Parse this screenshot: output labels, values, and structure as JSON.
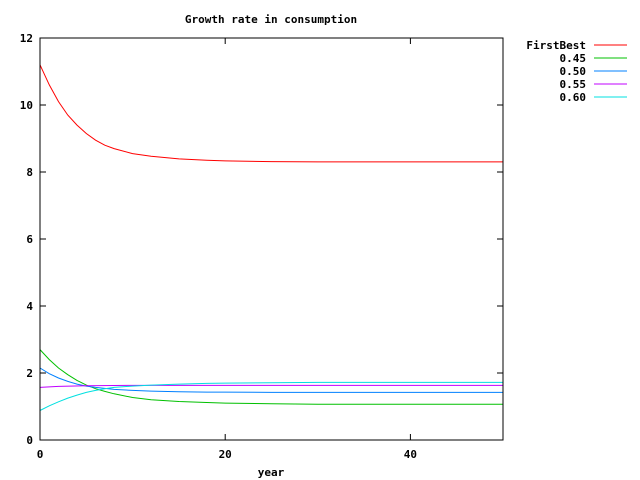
{
  "chart_data": {
    "type": "line",
    "title": "Growth rate in consumption",
    "xlabel": "year",
    "ylabel": "",
    "xlim": [
      0,
      50
    ],
    "ylim": [
      0,
      12
    ],
    "xticks": [
      0,
      20,
      40
    ],
    "yticks": [
      0,
      2,
      4,
      6,
      8,
      10,
      12
    ],
    "grid": false,
    "legend_position": "top-right-outside",
    "series": [
      {
        "name": "FirstBest",
        "color": "#ff0000",
        "x": [
          0,
          1,
          2,
          3,
          4,
          5,
          6,
          7,
          8,
          10,
          12,
          15,
          18,
          20,
          25,
          30,
          35,
          40,
          45,
          50
        ],
        "y": [
          11.2,
          10.6,
          10.1,
          9.7,
          9.4,
          9.15,
          8.95,
          8.8,
          8.7,
          8.55,
          8.47,
          8.39,
          8.35,
          8.33,
          8.31,
          8.3,
          8.3,
          8.3,
          8.3,
          8.3
        ]
      },
      {
        "name": "0.45",
        "color": "#00c000",
        "x": [
          0,
          1,
          2,
          3,
          4,
          5,
          6,
          7,
          8,
          10,
          12,
          15,
          18,
          20,
          25,
          30,
          35,
          40,
          45,
          50
        ],
        "y": [
          2.7,
          2.4,
          2.15,
          1.95,
          1.78,
          1.64,
          1.53,
          1.45,
          1.38,
          1.27,
          1.2,
          1.15,
          1.12,
          1.1,
          1.08,
          1.07,
          1.07,
          1.07,
          1.07,
          1.07
        ]
      },
      {
        "name": "0.50",
        "color": "#0080ff",
        "x": [
          0,
          1,
          2,
          3,
          4,
          5,
          6,
          7,
          8,
          10,
          12,
          15,
          18,
          20,
          25,
          30,
          35,
          40,
          45,
          50
        ],
        "y": [
          2.15,
          1.98,
          1.85,
          1.75,
          1.67,
          1.61,
          1.57,
          1.54,
          1.51,
          1.48,
          1.46,
          1.44,
          1.43,
          1.43,
          1.42,
          1.42,
          1.42,
          1.42,
          1.42,
          1.42
        ]
      },
      {
        "name": "0.55",
        "color": "#c000ff",
        "x": [
          0,
          2,
          5,
          10,
          15,
          20,
          30,
          40,
          50
        ],
        "y": [
          1.57,
          1.6,
          1.62,
          1.63,
          1.63,
          1.63,
          1.63,
          1.63,
          1.63
        ]
      },
      {
        "name": "0.60",
        "color": "#00e0e0",
        "x": [
          0,
          1,
          2,
          3,
          4,
          5,
          6,
          7,
          8,
          10,
          12,
          15,
          18,
          20,
          25,
          30,
          35,
          40,
          45,
          50
        ],
        "y": [
          0.88,
          1.02,
          1.14,
          1.25,
          1.34,
          1.42,
          1.48,
          1.53,
          1.57,
          1.61,
          1.64,
          1.67,
          1.69,
          1.7,
          1.71,
          1.72,
          1.72,
          1.72,
          1.72,
          1.72
        ]
      }
    ]
  }
}
